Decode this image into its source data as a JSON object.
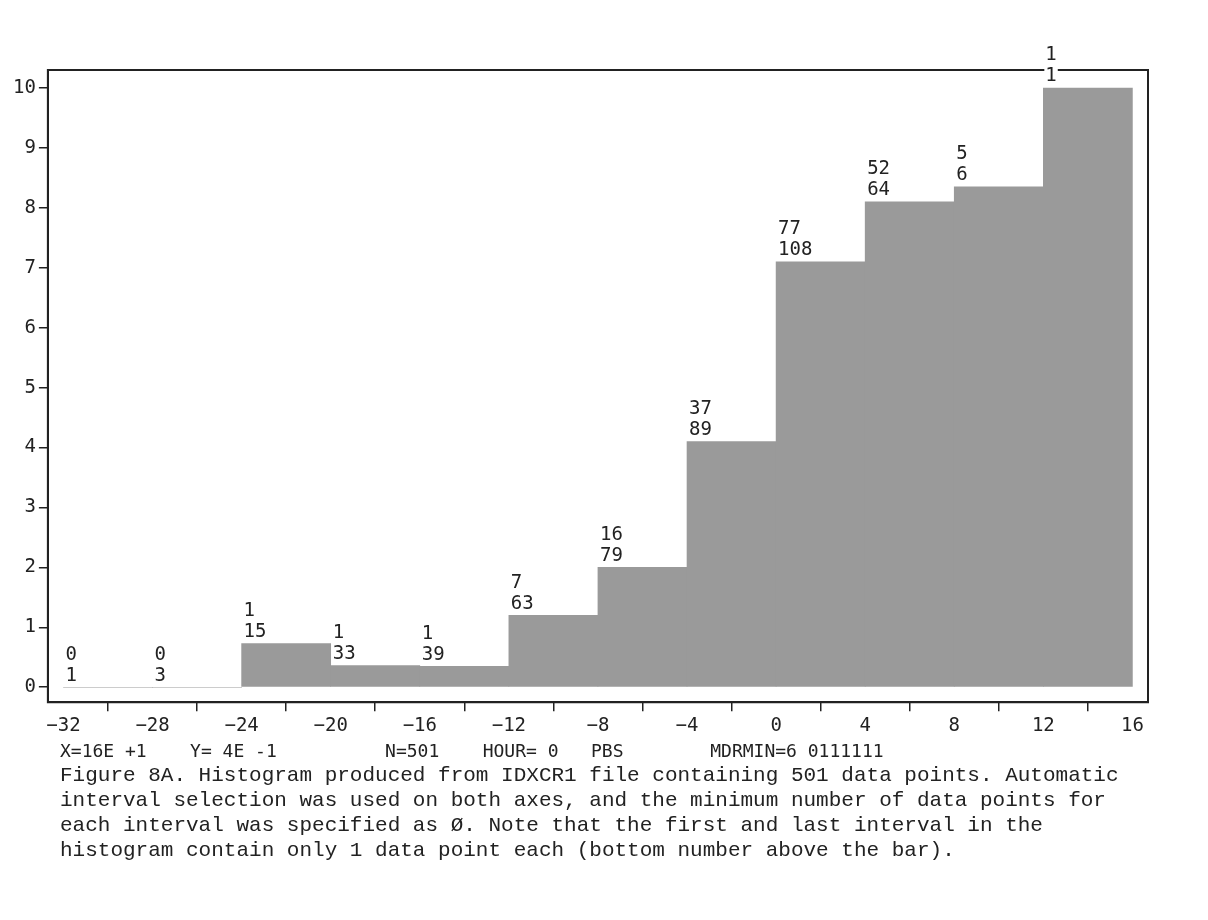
{
  "chart_data": {
    "type": "histogram",
    "bins": [
      -32,
      -28,
      -24,
      -20,
      -16,
      -12,
      -8,
      -4,
      0,
      4,
      8,
      12,
      16
    ],
    "values": [
      0,
      0,
      0.73,
      0.36,
      0.35,
      1.2,
      2.0,
      4.1,
      7.1,
      8.1,
      8.35,
      10.0
    ],
    "color": "#9a9a9a",
    "xlim": [
      -32.7,
      16.7
    ],
    "xticks": [
      -32,
      -28,
      -24,
      -20,
      -16,
      -12,
      -8,
      -4,
      0,
      4,
      8,
      12,
      16
    ],
    "ylim": [
      -0.25,
      10.3
    ],
    "yticks": [
      0,
      1,
      2,
      3,
      4,
      5,
      6,
      7,
      8,
      9,
      10
    ],
    "grid": false,
    "legend": false,
    "annotations": [
      {
        "text": "0\n1",
        "x": -32,
        "y": 0
      },
      {
        "text": "0\n3",
        "x": -28,
        "y": 0
      },
      {
        "text": "1\n15",
        "x": -24,
        "y": 0.73
      },
      {
        "text": "1\n33",
        "x": -20,
        "y": 0.36
      },
      {
        "text": "1\n39",
        "x": -16,
        "y": 0.35
      },
      {
        "text": "7\n63",
        "x": -12,
        "y": 1.2
      },
      {
        "text": "16\n79",
        "x": -8,
        "y": 2.0
      },
      {
        "text": "37\n89",
        "x": -4,
        "y": 4.1
      },
      {
        "text": "77\n108",
        "x": 0,
        "y": 7.1
      },
      {
        "text": "52\n64",
        "x": 4,
        "y": 8.1
      },
      {
        "text": "5\n6",
        "x": 8,
        "y": 8.35
      },
      {
        "text": "1\n1",
        "x": 12,
        "y": 10.0
      },
      "X=16E +1    Y= 4E -1          N=501    HOUR= 0   PBS        MDRMIN=6 0111111",
      "Figure 8A.  Histogram produced from IDXCR1 file containing 501 data points.  Automatic interval selection was used on both axes, and the minimum number of data points for each interval was specified as  Ø.  Note that the first and last interval in the histogram contain only 1 data point each (bottom number above the bar)."
    ]
  }
}
